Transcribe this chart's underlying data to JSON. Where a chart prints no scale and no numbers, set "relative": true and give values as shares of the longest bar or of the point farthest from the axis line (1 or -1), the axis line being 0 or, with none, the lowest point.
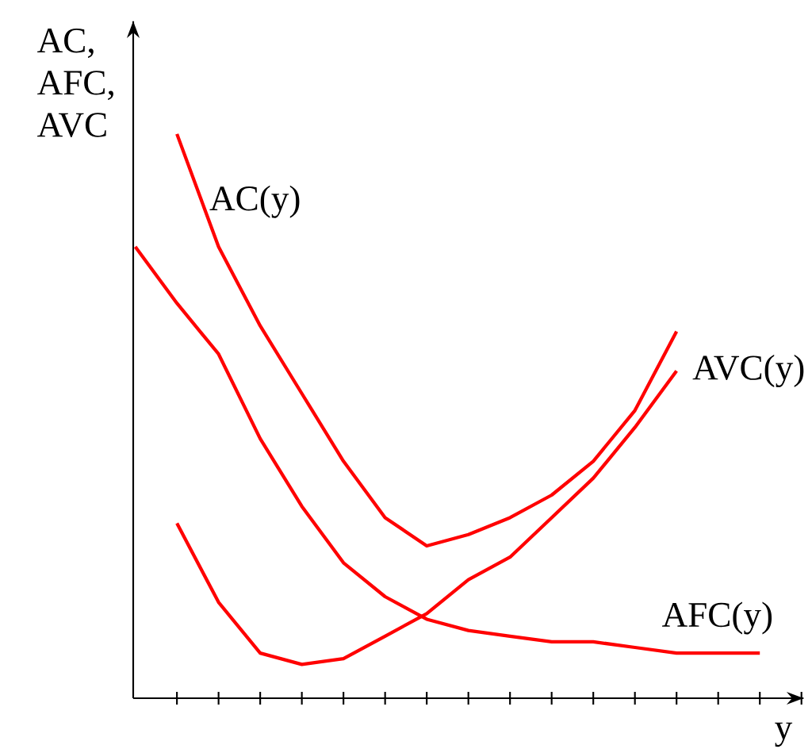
{
  "chart_data": {
    "type": "line",
    "relative": true,
    "xlabel": "y",
    "ylabel": "AC, AFC, AVC",
    "categories": [
      null,
      null,
      null,
      null,
      null,
      null,
      null,
      null,
      null,
      null,
      null,
      null,
      null,
      null,
      null,
      null
    ],
    "series": [
      {
        "name": "AC(y)",
        "color": "#ff0000",
        "values": [
          null,
          1.0,
          0.8,
          0.66,
          0.54,
          0.42,
          0.32,
          0.27,
          0.29,
          0.32,
          0.36,
          0.42,
          0.51,
          0.65,
          null,
          null
        ]
      },
      {
        "name": "AVC(y)",
        "color": "#ff0000",
        "values": [
          null,
          0.31,
          0.17,
          0.08,
          0.06,
          0.07,
          0.11,
          0.15,
          0.21,
          0.25,
          0.32,
          0.39,
          0.48,
          0.58,
          null,
          null
        ]
      },
      {
        "name": "AFC(y)",
        "color": "#ff0000",
        "values": [
          0.8,
          0.7,
          0.61,
          0.46,
          0.34,
          0.24,
          0.18,
          0.14,
          0.12,
          0.11,
          0.1,
          0.1,
          0.09,
          0.08,
          0.08,
          0.08
        ]
      }
    ],
    "legend": false,
    "marker": "none",
    "line_style": "solid",
    "grid": false
  }
}
